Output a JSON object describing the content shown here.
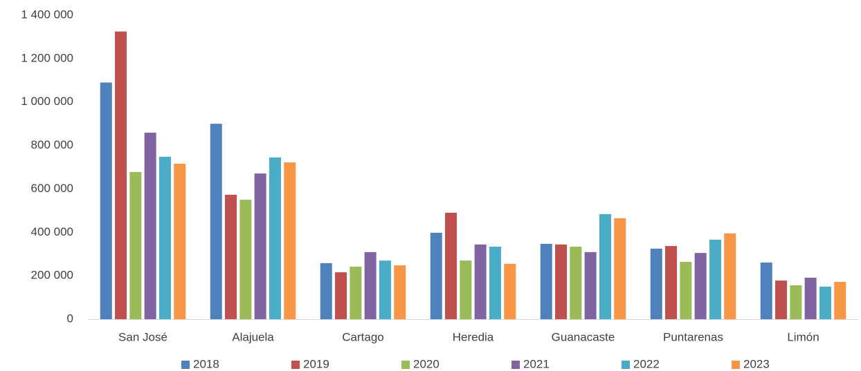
{
  "chart_data": {
    "type": "bar",
    "categories": [
      "San José",
      "Alajuela",
      "Cartago",
      "Heredia",
      "Guanacaste",
      "Puntarenas",
      "Limón"
    ],
    "series": [
      {
        "name": "2018",
        "color": "#4f81bd",
        "values": [
          1090000,
          900000,
          258000,
          398000,
          347000,
          325000,
          261000
        ]
      },
      {
        "name": "2019",
        "color": "#c0504d",
        "values": [
          1325000,
          573000,
          216000,
          490000,
          344000,
          337000,
          178000
        ]
      },
      {
        "name": "2020",
        "color": "#9bbb59",
        "values": [
          678000,
          550000,
          242000,
          270000,
          334000,
          264000,
          156000
        ]
      },
      {
        "name": "2021",
        "color": "#8064a2",
        "values": [
          859000,
          671000,
          309000,
          344000,
          309000,
          305000,
          191000
        ]
      },
      {
        "name": "2022",
        "color": "#4bacc6",
        "values": [
          748000,
          745000,
          270000,
          334000,
          484000,
          366000,
          150000
        ]
      },
      {
        "name": "2023",
        "color": "#f79646",
        "values": [
          716000,
          722000,
          248000,
          255000,
          465000,
          395000,
          172000
        ]
      }
    ],
    "ylim": [
      0,
      1400000
    ],
    "yticks": [
      0,
      {
        "value": 200000,
        "label": "200 000"
      },
      {
        "value": 400000,
        "label": "400 000"
      },
      {
        "value": 600000,
        "label": "600 000"
      },
      {
        "value": 800000,
        "label": "800 000"
      },
      {
        "value": 1000000,
        "label": "1 000 000"
      },
      {
        "value": 1200000,
        "label": "1 200 000"
      },
      {
        "value": 1400000,
        "label": "1 400 000"
      }
    ],
    "grid": false,
    "legend": "bottom"
  }
}
